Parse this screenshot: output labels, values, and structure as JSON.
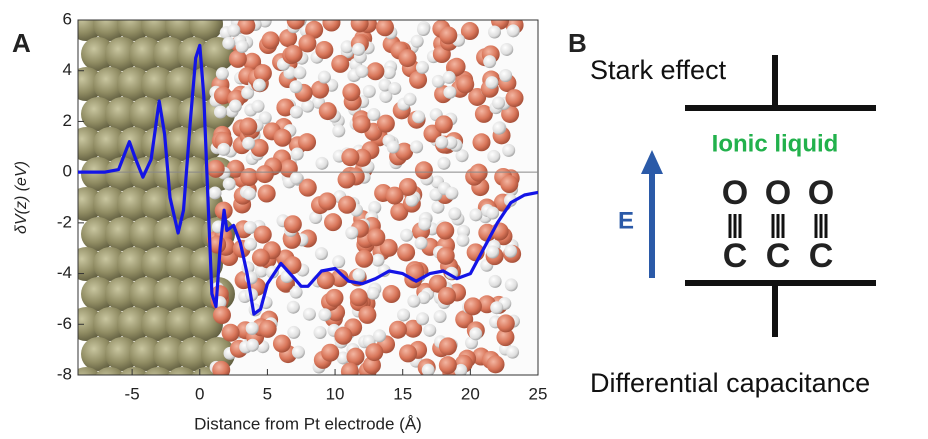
{
  "chart_data": {
    "type": "line",
    "panel_label": "A",
    "x_label": "Distance from Pt electrode (Å)",
    "y_label": "δV(z) (eV)",
    "xlim": [
      -9,
      25
    ],
    "xticks": [
      -5,
      0,
      5,
      10,
      15,
      20,
      25
    ],
    "ylim": [
      -8,
      6
    ],
    "yticks": [
      -8,
      -6,
      -4,
      -2,
      0,
      2,
      4,
      6
    ],
    "zero_line": true,
    "series": [
      {
        "name": null,
        "color": "#1414e6",
        "x": [
          -9,
          -7,
          -6,
          -5.5,
          -5.2,
          -4.8,
          -4.2,
          -3.6,
          -3,
          -2.6,
          -2.2,
          -1.6,
          -1.2,
          -0.7,
          -0.3,
          0,
          0.3,
          0.6,
          0.9,
          1.2,
          1.5,
          1.8,
          2,
          2.5,
          3,
          3.5,
          4,
          4.5,
          5,
          6,
          7,
          7.5,
          8,
          9,
          10,
          11,
          12,
          13,
          14,
          15,
          16,
          17,
          18,
          19,
          20,
          21,
          22,
          23,
          24,
          25
        ],
        "values": [
          0,
          0,
          0.1,
          0.8,
          1.2,
          0.6,
          -0.2,
          0.5,
          2.8,
          1.5,
          -1,
          -2.4,
          -1.5,
          2,
          4.5,
          5,
          3,
          -1,
          -4.8,
          -5.3,
          -3,
          -1.5,
          -2.3,
          -2.1,
          -2.8,
          -4,
          -5.6,
          -5.4,
          -4.4,
          -3.6,
          -4.2,
          -4.5,
          -4.5,
          -3.9,
          -3.8,
          -4.3,
          -4.4,
          -4.2,
          -3.9,
          -4,
          -4.3,
          -4,
          -3.9,
          -4.2,
          -4,
          -3,
          -2,
          -1.2,
          -0.9,
          -0.8
        ]
      }
    ]
  },
  "diagram": {
    "panel_label": "B",
    "top_label": "Stark effect",
    "medium_label": "Ionic liquid",
    "field_label": "E",
    "molecules": [
      {
        "top": "O",
        "bottom": "C"
      },
      {
        "top": "O",
        "bottom": "C"
      },
      {
        "top": "O",
        "bottom": "C"
      }
    ],
    "bottom_label": "Differential capacitance"
  }
}
